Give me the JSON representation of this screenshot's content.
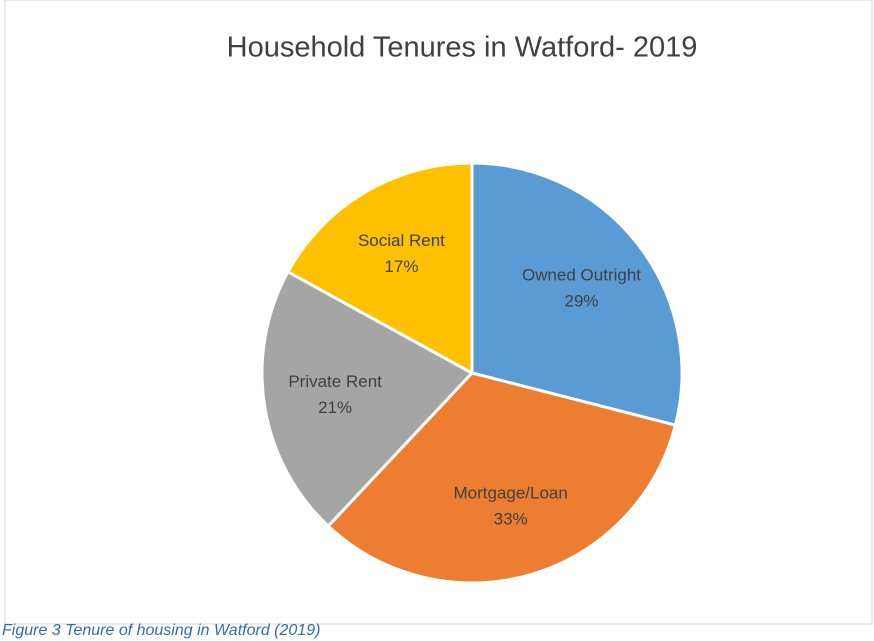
{
  "chart_data": {
    "type": "pie",
    "title": "Household Tenures in Watford- 2019",
    "categories": [
      "Owned Outright",
      "Mortgage/Loan",
      "Private Rent",
      "Social Rent"
    ],
    "values": [
      29,
      33,
      21,
      17
    ],
    "value_labels": [
      "29%",
      "33%",
      "21%",
      "17%"
    ],
    "colors": [
      "#5b9bd5",
      "#ed7d31",
      "#a5a5a5",
      "#ffc000"
    ]
  },
  "caption": "Figure 3 Tenure of housing in Watford (2019)"
}
